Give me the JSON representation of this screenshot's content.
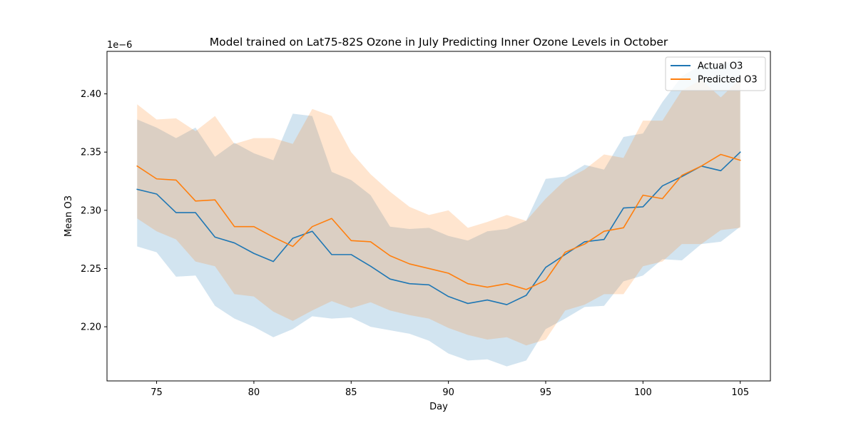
{
  "chart_data": {
    "type": "line",
    "title": "Model trained on Lat75-82S Ozone in July Predicting Inner Ozone Levels in October",
    "xlabel": "Day",
    "ylabel": "Mean O3",
    "y_offset_label": "1e−6",
    "xlim": [
      72.45,
      106.55
    ],
    "ylim": [
      2.1535,
      2.4365
    ],
    "x_ticks": [
      75,
      80,
      85,
      90,
      95,
      100,
      105
    ],
    "x_tick_labels": [
      "75",
      "80",
      "85",
      "90",
      "95",
      "100",
      "105"
    ],
    "y_ticks": [
      2.2,
      2.25,
      2.3,
      2.35,
      2.4
    ],
    "y_tick_labels": [
      "2.20",
      "2.25",
      "2.30",
      "2.35",
      "2.40"
    ],
    "grid": false,
    "legend_position": "top-right",
    "x": [
      74,
      75,
      76,
      77,
      78,
      79,
      80,
      81,
      82,
      83,
      84,
      85,
      86,
      87,
      88,
      89,
      90,
      91,
      92,
      93,
      94,
      95,
      96,
      97,
      98,
      99,
      100,
      101,
      102,
      103,
      104,
      105
    ],
    "series": [
      {
        "name": "Actual O3",
        "color": "#1f77b4",
        "band_alpha": 0.2,
        "values": [
          2.318,
          2.314,
          2.298,
          2.298,
          2.277,
          2.272,
          2.263,
          2.256,
          2.276,
          2.282,
          2.262,
          2.262,
          2.252,
          2.241,
          2.237,
          2.236,
          2.226,
          2.22,
          2.223,
          2.219,
          2.227,
          2.251,
          2.262,
          2.273,
          2.275,
          2.302,
          2.303,
          2.321,
          2.329,
          2.338,
          2.334,
          2.35
        ],
        "lower": [
          2.269,
          2.264,
          2.243,
          2.244,
          2.218,
          2.207,
          2.2,
          2.191,
          2.198,
          2.209,
          2.207,
          2.208,
          2.2,
          2.197,
          2.194,
          2.188,
          2.177,
          2.171,
          2.172,
          2.166,
          2.171,
          2.198,
          2.207,
          2.217,
          2.218,
          2.239,
          2.244,
          2.258,
          2.257,
          2.271,
          2.273,
          2.286
        ],
        "upper": [
          2.378,
          2.371,
          2.362,
          2.371,
          2.346,
          2.358,
          2.349,
          2.343,
          2.383,
          2.381,
          2.333,
          2.326,
          2.313,
          2.286,
          2.284,
          2.285,
          2.278,
          2.274,
          2.282,
          2.284,
          2.291,
          2.327,
          2.329,
          2.339,
          2.335,
          2.363,
          2.366,
          2.393,
          2.415,
          2.425,
          2.425,
          2.43
        ]
      },
      {
        "name": "Predicted O3",
        "color": "#ff7f0e",
        "band_alpha": 0.2,
        "values": [
          2.338,
          2.327,
          2.326,
          2.308,
          2.309,
          2.286,
          2.286,
          2.277,
          2.269,
          2.286,
          2.293,
          2.274,
          2.273,
          2.261,
          2.254,
          2.25,
          2.246,
          2.237,
          2.234,
          2.237,
          2.232,
          2.24,
          2.264,
          2.271,
          2.282,
          2.285,
          2.313,
          2.31,
          2.33,
          2.338,
          2.348,
          2.343
        ],
        "lower": [
          2.293,
          2.282,
          2.275,
          2.256,
          2.252,
          2.228,
          2.226,
          2.213,
          2.205,
          2.214,
          2.222,
          2.216,
          2.221,
          2.214,
          2.21,
          2.207,
          2.199,
          2.193,
          2.189,
          2.191,
          2.184,
          2.189,
          2.214,
          2.219,
          2.228,
          2.228,
          2.252,
          2.256,
          2.271,
          2.271,
          2.283,
          2.285
        ],
        "upper": [
          2.391,
          2.378,
          2.379,
          2.368,
          2.381,
          2.357,
          2.362,
          2.362,
          2.357,
          2.387,
          2.381,
          2.35,
          2.331,
          2.316,
          2.303,
          2.296,
          2.3,
          2.285,
          2.29,
          2.296,
          2.291,
          2.31,
          2.326,
          2.335,
          2.348,
          2.345,
          2.377,
          2.377,
          2.403,
          2.412,
          2.397,
          2.413
        ]
      }
    ]
  }
}
